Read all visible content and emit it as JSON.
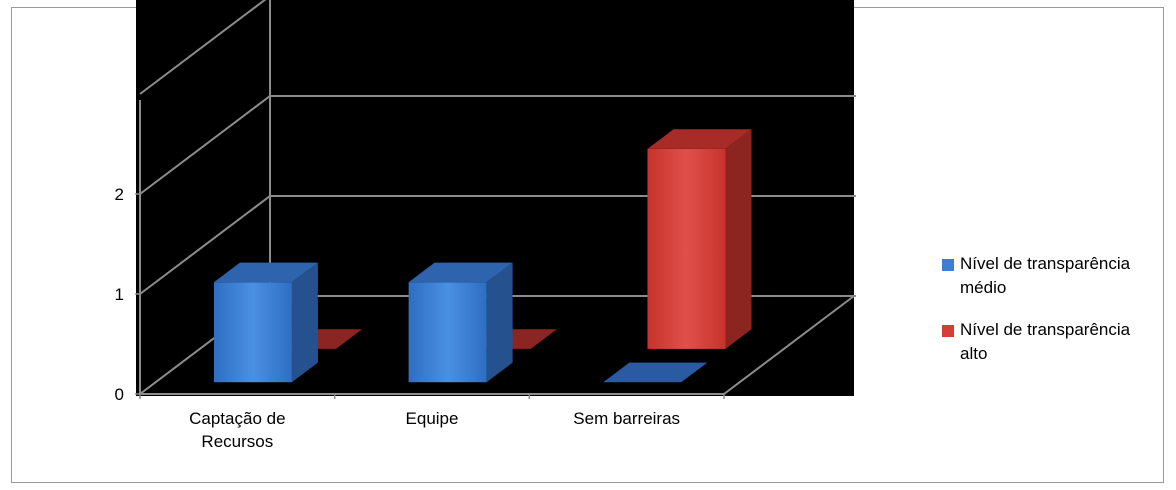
{
  "chart_data": {
    "type": "bar",
    "categories": [
      "Captação de Recursos",
      "Equipe",
      "Sem barreiras"
    ],
    "category_lines": [
      [
        "Captação de",
        "Recursos"
      ],
      [
        "Equipe"
      ],
      [
        "Sem barreiras"
      ]
    ],
    "series": [
      {
        "name": "Nível de transparência médio",
        "legend_lines": [
          "Nível de transparência",
          "médio"
        ],
        "values": [
          1,
          1,
          0
        ],
        "color": "#3a7fd5"
      },
      {
        "name": "Nível de transparência alto",
        "legend_lines": [
          "Nível de transparência",
          "alto"
        ],
        "values": [
          0,
          0,
          2
        ],
        "color": "#d63d37"
      }
    ],
    "ylim": [
      0,
      3
    ],
    "yticks": [
      0,
      1,
      2
    ],
    "grid": true,
    "background": "#000000",
    "legend_position": "right",
    "projection": "3d"
  }
}
